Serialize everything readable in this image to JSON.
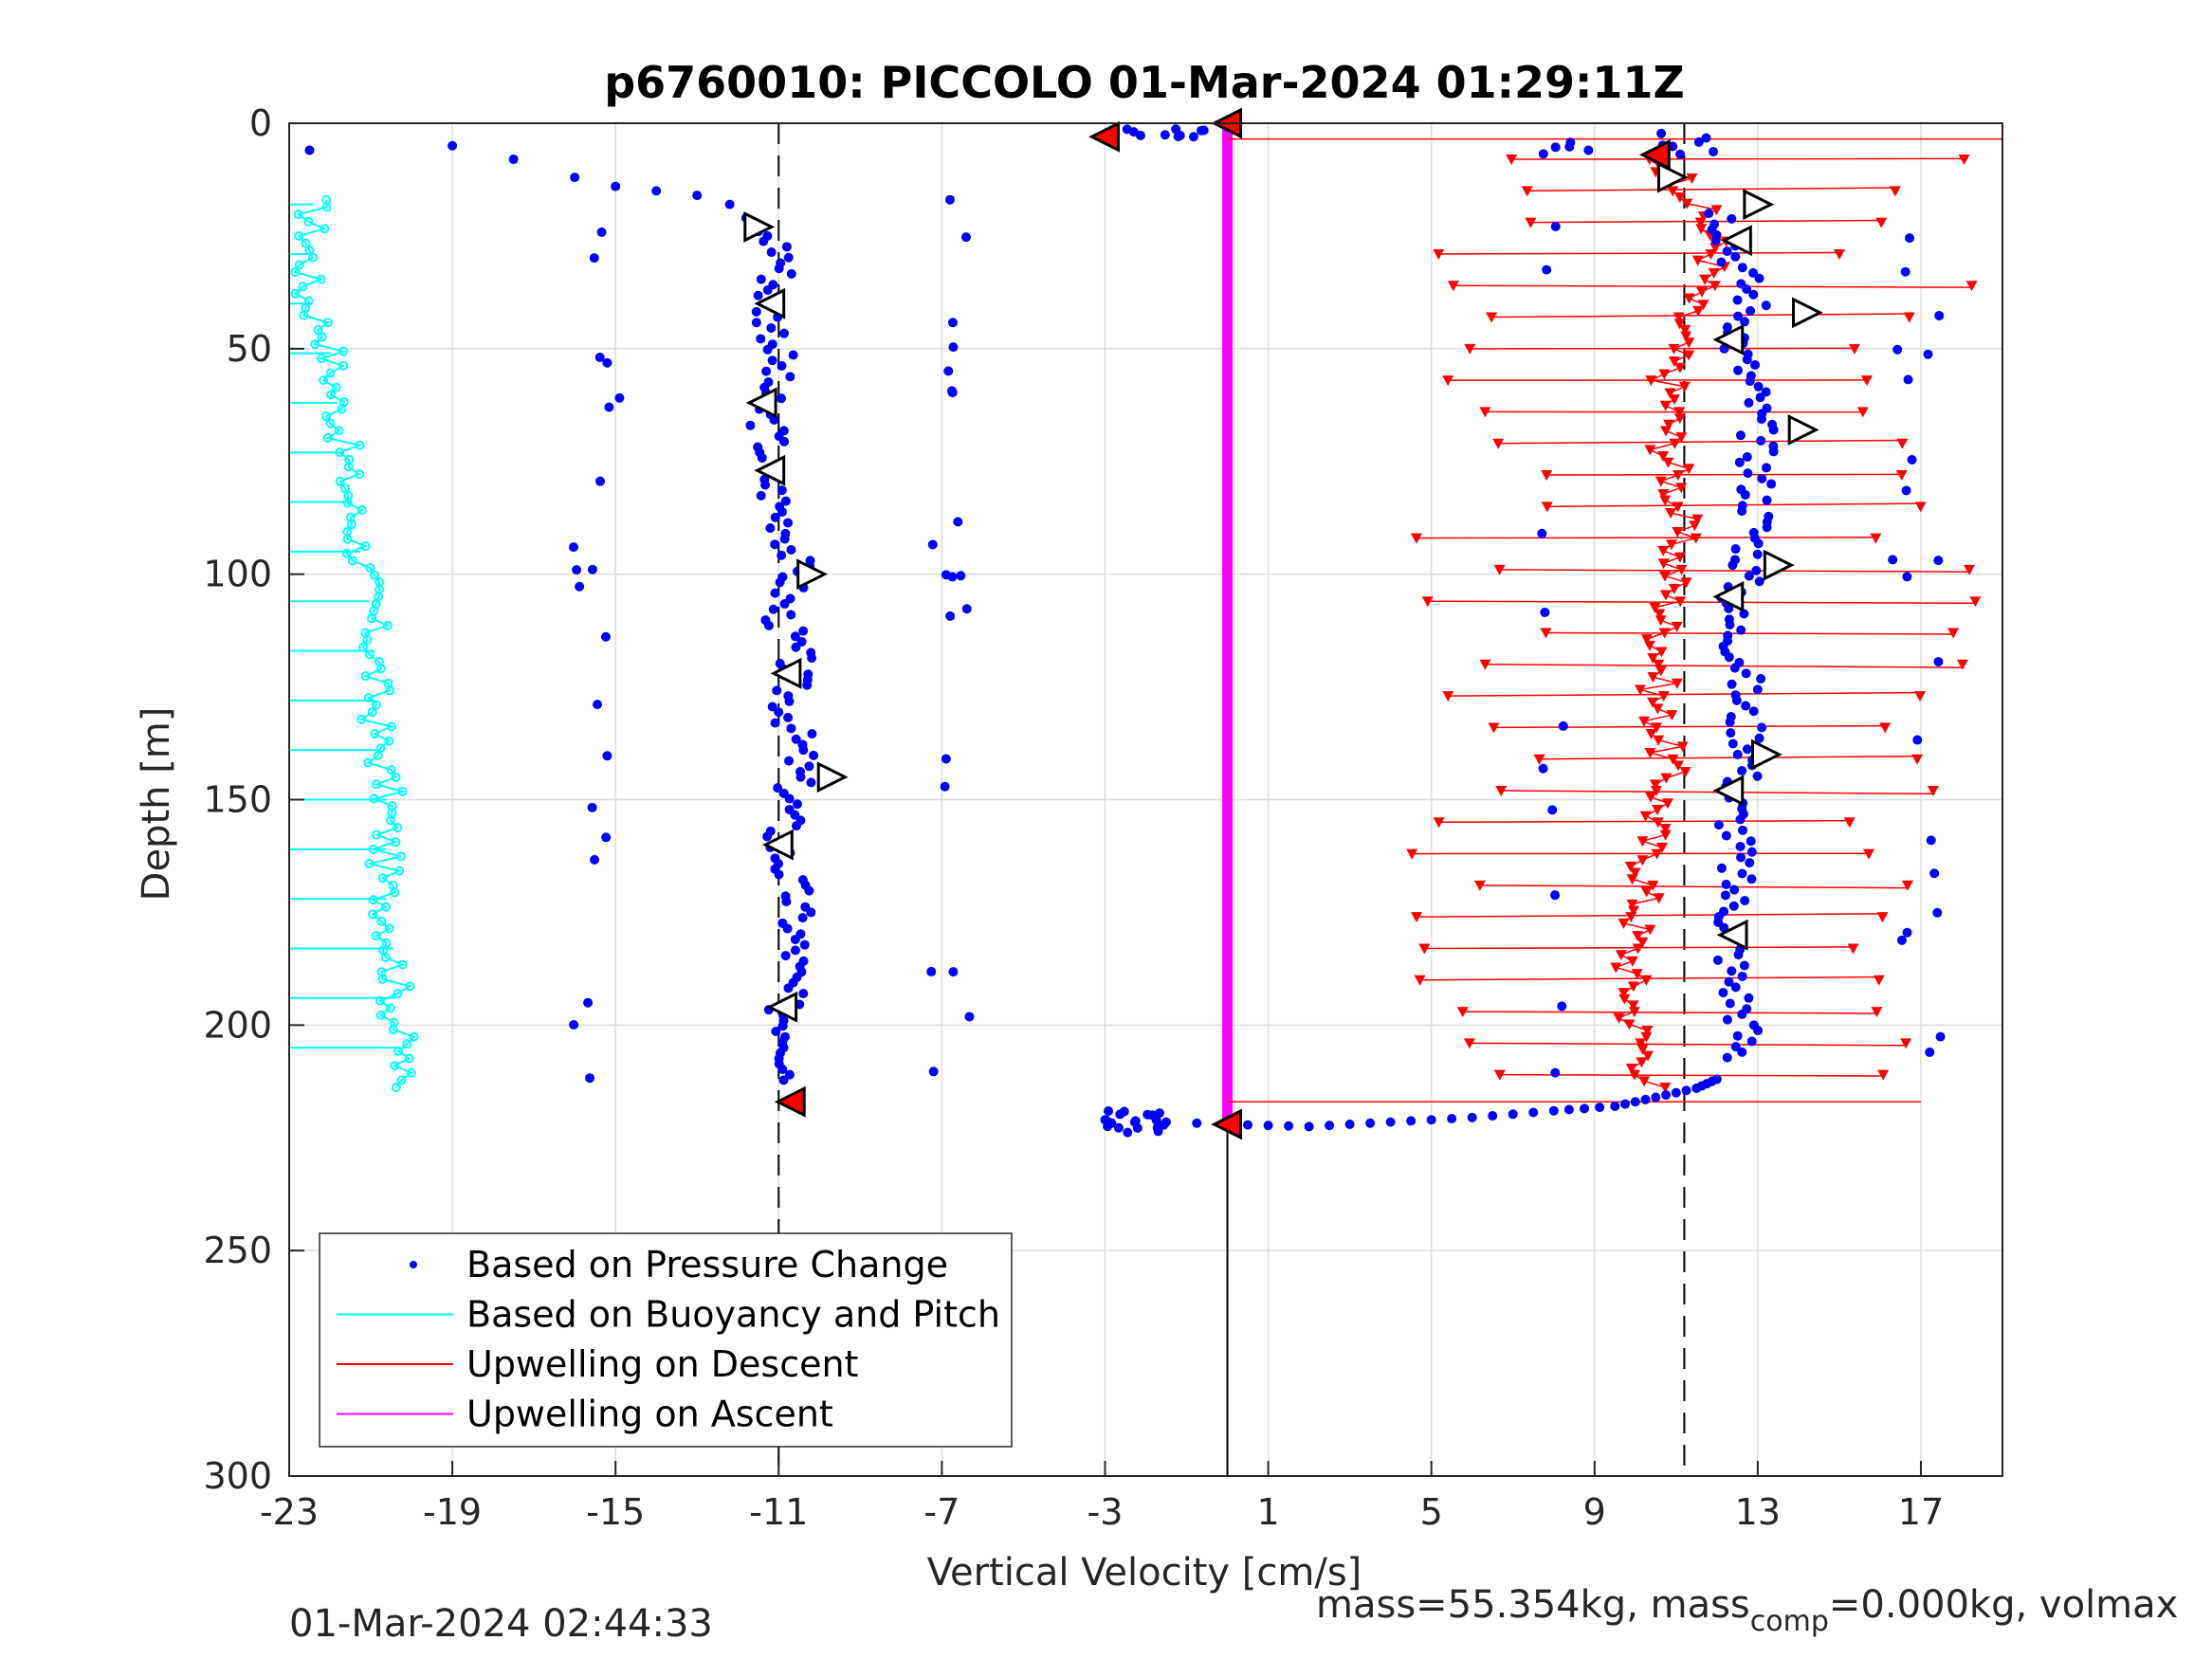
{
  "chart_data": {
    "type": "scatter",
    "title": "p6760010: PICCOLO 01-Mar-2024 01:29:11Z",
    "xlabel": "Vertical Velocity [cm/s]",
    "ylabel": "Depth [m]",
    "xlim": [
      -23,
      19
    ],
    "ylim": [
      0,
      300
    ],
    "y_reversed": true,
    "xticks": [
      -23,
      -19,
      -15,
      -11,
      -7,
      -3,
      1,
      5,
      9,
      13,
      17
    ],
    "yticks": [
      0,
      50,
      100,
      150,
      200,
      250,
      300
    ],
    "grid": true,
    "legend_position": "bottom-left",
    "legend": [
      {
        "label": "Based on Pressure Change",
        "color": "#0000ff",
        "style": "dot"
      },
      {
        "label": "Based on Buoyancy and Pitch",
        "color": "#00ffff",
        "style": "line"
      },
      {
        "label": "Upwelling on Descent",
        "color": "#ff0000",
        "style": "line"
      },
      {
        "label": "Upwelling on Ascent",
        "color": "#ff00ff",
        "style": "line"
      }
    ],
    "reference_lines": [
      {
        "x": -11,
        "style": "dashed",
        "y_range": [
          0,
          300
        ]
      },
      {
        "x": 11.2,
        "style": "dashed",
        "y_range": [
          0,
          300
        ]
      },
      {
        "x": 0,
        "style": "solid",
        "y_range": [
          222,
          300
        ]
      }
    ],
    "upwelling_ascent": {
      "x": 0,
      "y_range": [
        0,
        222
      ]
    },
    "pressure_change_descent": [
      {
        "x": -11.2,
        "y": 25
      },
      {
        "x": -10.8,
        "y": 30
      },
      {
        "x": -11.3,
        "y": 40
      },
      {
        "x": -11.0,
        "y": 48
      },
      {
        "x": -11.1,
        "y": 55
      },
      {
        "x": -11.4,
        "y": 62
      },
      {
        "x": -11.2,
        "y": 70
      },
      {
        "x": -11.3,
        "y": 77
      },
      {
        "x": -11.0,
        "y": 85
      },
      {
        "x": -10.7,
        "y": 92
      },
      {
        "x": -10.6,
        "y": 100
      },
      {
        "x": -11.0,
        "y": 108
      },
      {
        "x": -10.6,
        "y": 118
      },
      {
        "x": -10.8,
        "y": 128
      },
      {
        "x": -10.5,
        "y": 140
      },
      {
        "x": -10.7,
        "y": 150
      },
      {
        "x": -11.0,
        "y": 160
      },
      {
        "x": -10.6,
        "y": 172
      },
      {
        "x": -10.6,
        "y": 185
      },
      {
        "x": -10.9,
        "y": 195
      },
      {
        "x": -10.6,
        "y": 205
      },
      {
        "x": -10.7,
        "y": 213
      }
    ],
    "pressure_change_ascent": [
      {
        "x": 12.2,
        "y": 20
      },
      {
        "x": 12.5,
        "y": 30
      },
      {
        "x": 12.9,
        "y": 40
      },
      {
        "x": 12.5,
        "y": 50
      },
      {
        "x": 12.9,
        "y": 60
      },
      {
        "x": 13.0,
        "y": 70
      },
      {
        "x": 13.0,
        "y": 80
      },
      {
        "x": 13.0,
        "y": 90
      },
      {
        "x": 12.7,
        "y": 100
      },
      {
        "x": 12.3,
        "y": 110
      },
      {
        "x": 12.7,
        "y": 120
      },
      {
        "x": 12.6,
        "y": 130
      },
      {
        "x": 12.9,
        "y": 140
      },
      {
        "x": 12.4,
        "y": 150
      },
      {
        "x": 12.5,
        "y": 160
      },
      {
        "x": 12.4,
        "y": 170
      },
      {
        "x": 12.4,
        "y": 180
      },
      {
        "x": 12.4,
        "y": 190
      },
      {
        "x": 12.7,
        "y": 200
      },
      {
        "x": 12.5,
        "y": 208
      }
    ],
    "buoyancy_pitch": [
      {
        "x": -22.4,
        "y": 17
      },
      {
        "x": -22.5,
        "y": 28
      },
      {
        "x": -22.6,
        "y": 38
      },
      {
        "x": -22.0,
        "y": 48
      },
      {
        "x": -21.9,
        "y": 58
      },
      {
        "x": -21.7,
        "y": 68
      },
      {
        "x": -21.6,
        "y": 78
      },
      {
        "x": -21.4,
        "y": 88
      },
      {
        "x": -21.2,
        "y": 98
      },
      {
        "x": -21.0,
        "y": 108
      },
      {
        "x": -20.9,
        "y": 118
      },
      {
        "x": -20.9,
        "y": 128
      },
      {
        "x": -20.8,
        "y": 138
      },
      {
        "x": -20.6,
        "y": 148
      },
      {
        "x": -20.6,
        "y": 158
      },
      {
        "x": -20.7,
        "y": 168
      },
      {
        "x": -20.5,
        "y": 178
      },
      {
        "x": -20.4,
        "y": 188
      },
      {
        "x": -20.4,
        "y": 198
      },
      {
        "x": -20.2,
        "y": 208
      },
      {
        "x": -20.5,
        "y": 215
      }
    ],
    "upwelling_descent": [
      {
        "x": 10.6,
        "y": 8
      },
      {
        "x": 11.3,
        "y": 14
      },
      {
        "x": 11.7,
        "y": 22
      },
      {
        "x": 12.0,
        "y": 28
      },
      {
        "x": 11.8,
        "y": 34
      },
      {
        "x": 11.3,
        "y": 40
      },
      {
        "x": 11.0,
        "y": 48
      },
      {
        "x": 10.8,
        "y": 56
      },
      {
        "x": 10.9,
        "y": 64
      },
      {
        "x": 10.8,
        "y": 72
      },
      {
        "x": 11.0,
        "y": 80
      },
      {
        "x": 11.1,
        "y": 88
      },
      {
        "x": 11.0,
        "y": 96
      },
      {
        "x": 10.9,
        "y": 104
      },
      {
        "x": 10.7,
        "y": 112
      },
      {
        "x": 10.7,
        "y": 120
      },
      {
        "x": 10.5,
        "y": 128
      },
      {
        "x": 10.7,
        "y": 136
      },
      {
        "x": 10.8,
        "y": 144
      },
      {
        "x": 10.6,
        "y": 152
      },
      {
        "x": 10.3,
        "y": 160
      },
      {
        "x": 10.3,
        "y": 168
      },
      {
        "x": 10.1,
        "y": 176
      },
      {
        "x": 9.9,
        "y": 184
      },
      {
        "x": 9.9,
        "y": 192
      },
      {
        "x": 10.0,
        "y": 200
      },
      {
        "x": 10.3,
        "y": 208
      },
      {
        "x": 10.4,
        "y": 214
      }
    ],
    "descent_triangles": [
      {
        "x": -11.5,
        "y": 23
      },
      {
        "x": -10.2,
        "y": 100
      },
      {
        "x": -9.7,
        "y": 145
      },
      {
        "x": 10.9,
        "y": 12
      },
      {
        "x": 13.0,
        "y": 18
      },
      {
        "x": 14.2,
        "y": 42
      },
      {
        "x": 14.1,
        "y": 68
      },
      {
        "x": 13.5,
        "y": 98
      },
      {
        "x": 13.2,
        "y": 140
      }
    ],
    "ascent_triangles": [
      {
        "x": -11.2,
        "y": 40
      },
      {
        "x": -11.4,
        "y": 62
      },
      {
        "x": -11.2,
        "y": 77
      },
      {
        "x": -10.8,
        "y": 122
      },
      {
        "x": -11.0,
        "y": 160
      },
      {
        "x": -10.9,
        "y": 196
      },
      {
        "x": 12.5,
        "y": 26
      },
      {
        "x": 12.3,
        "y": 48
      },
      {
        "x": 12.3,
        "y": 105
      },
      {
        "x": 12.3,
        "y": 148
      },
      {
        "x": 12.4,
        "y": 180
      }
    ],
    "red_triangles": [
      {
        "x": -3.0,
        "y": 3
      },
      {
        "x": 0.0,
        "y": 0
      },
      {
        "x": 0.0,
        "y": 222
      },
      {
        "x": -10.7,
        "y": 217
      },
      {
        "x": 10.5,
        "y": 7
      }
    ],
    "bottom_transition": [
      {
        "x": -3.0,
        "y": 221
      },
      {
        "x": 0.0,
        "y": 222
      },
      {
        "x": 2.0,
        "y": 222.5
      },
      {
        "x": 4.0,
        "y": 221.5
      },
      {
        "x": 6.0,
        "y": 220.5
      },
      {
        "x": 8.0,
        "y": 219
      },
      {
        "x": 9.5,
        "y": 218
      },
      {
        "x": 10.5,
        "y": 216
      },
      {
        "x": 11.5,
        "y": 214
      },
      {
        "x": 12.0,
        "y": 212
      }
    ],
    "surface_transition": [
      {
        "x": -22.5,
        "y": 6
      },
      {
        "x": -19.0,
        "y": 5
      },
      {
        "x": -17.5,
        "y": 8
      },
      {
        "x": -16.0,
        "y": 12
      },
      {
        "x": -15.0,
        "y": 14
      },
      {
        "x": -14.0,
        "y": 15
      },
      {
        "x": -13.0,
        "y": 16
      },
      {
        "x": -12.2,
        "y": 18
      },
      {
        "x": -11.8,
        "y": 21
      },
      {
        "x": -11.5,
        "y": 24
      }
    ]
  },
  "footer": {
    "timestamp": "01-Mar-2024 02:44:33",
    "mass_text": "mass=55.354kg, mass",
    "mass_sub": "comp",
    "mass_rest": "=0.000kg, volmax"
  }
}
